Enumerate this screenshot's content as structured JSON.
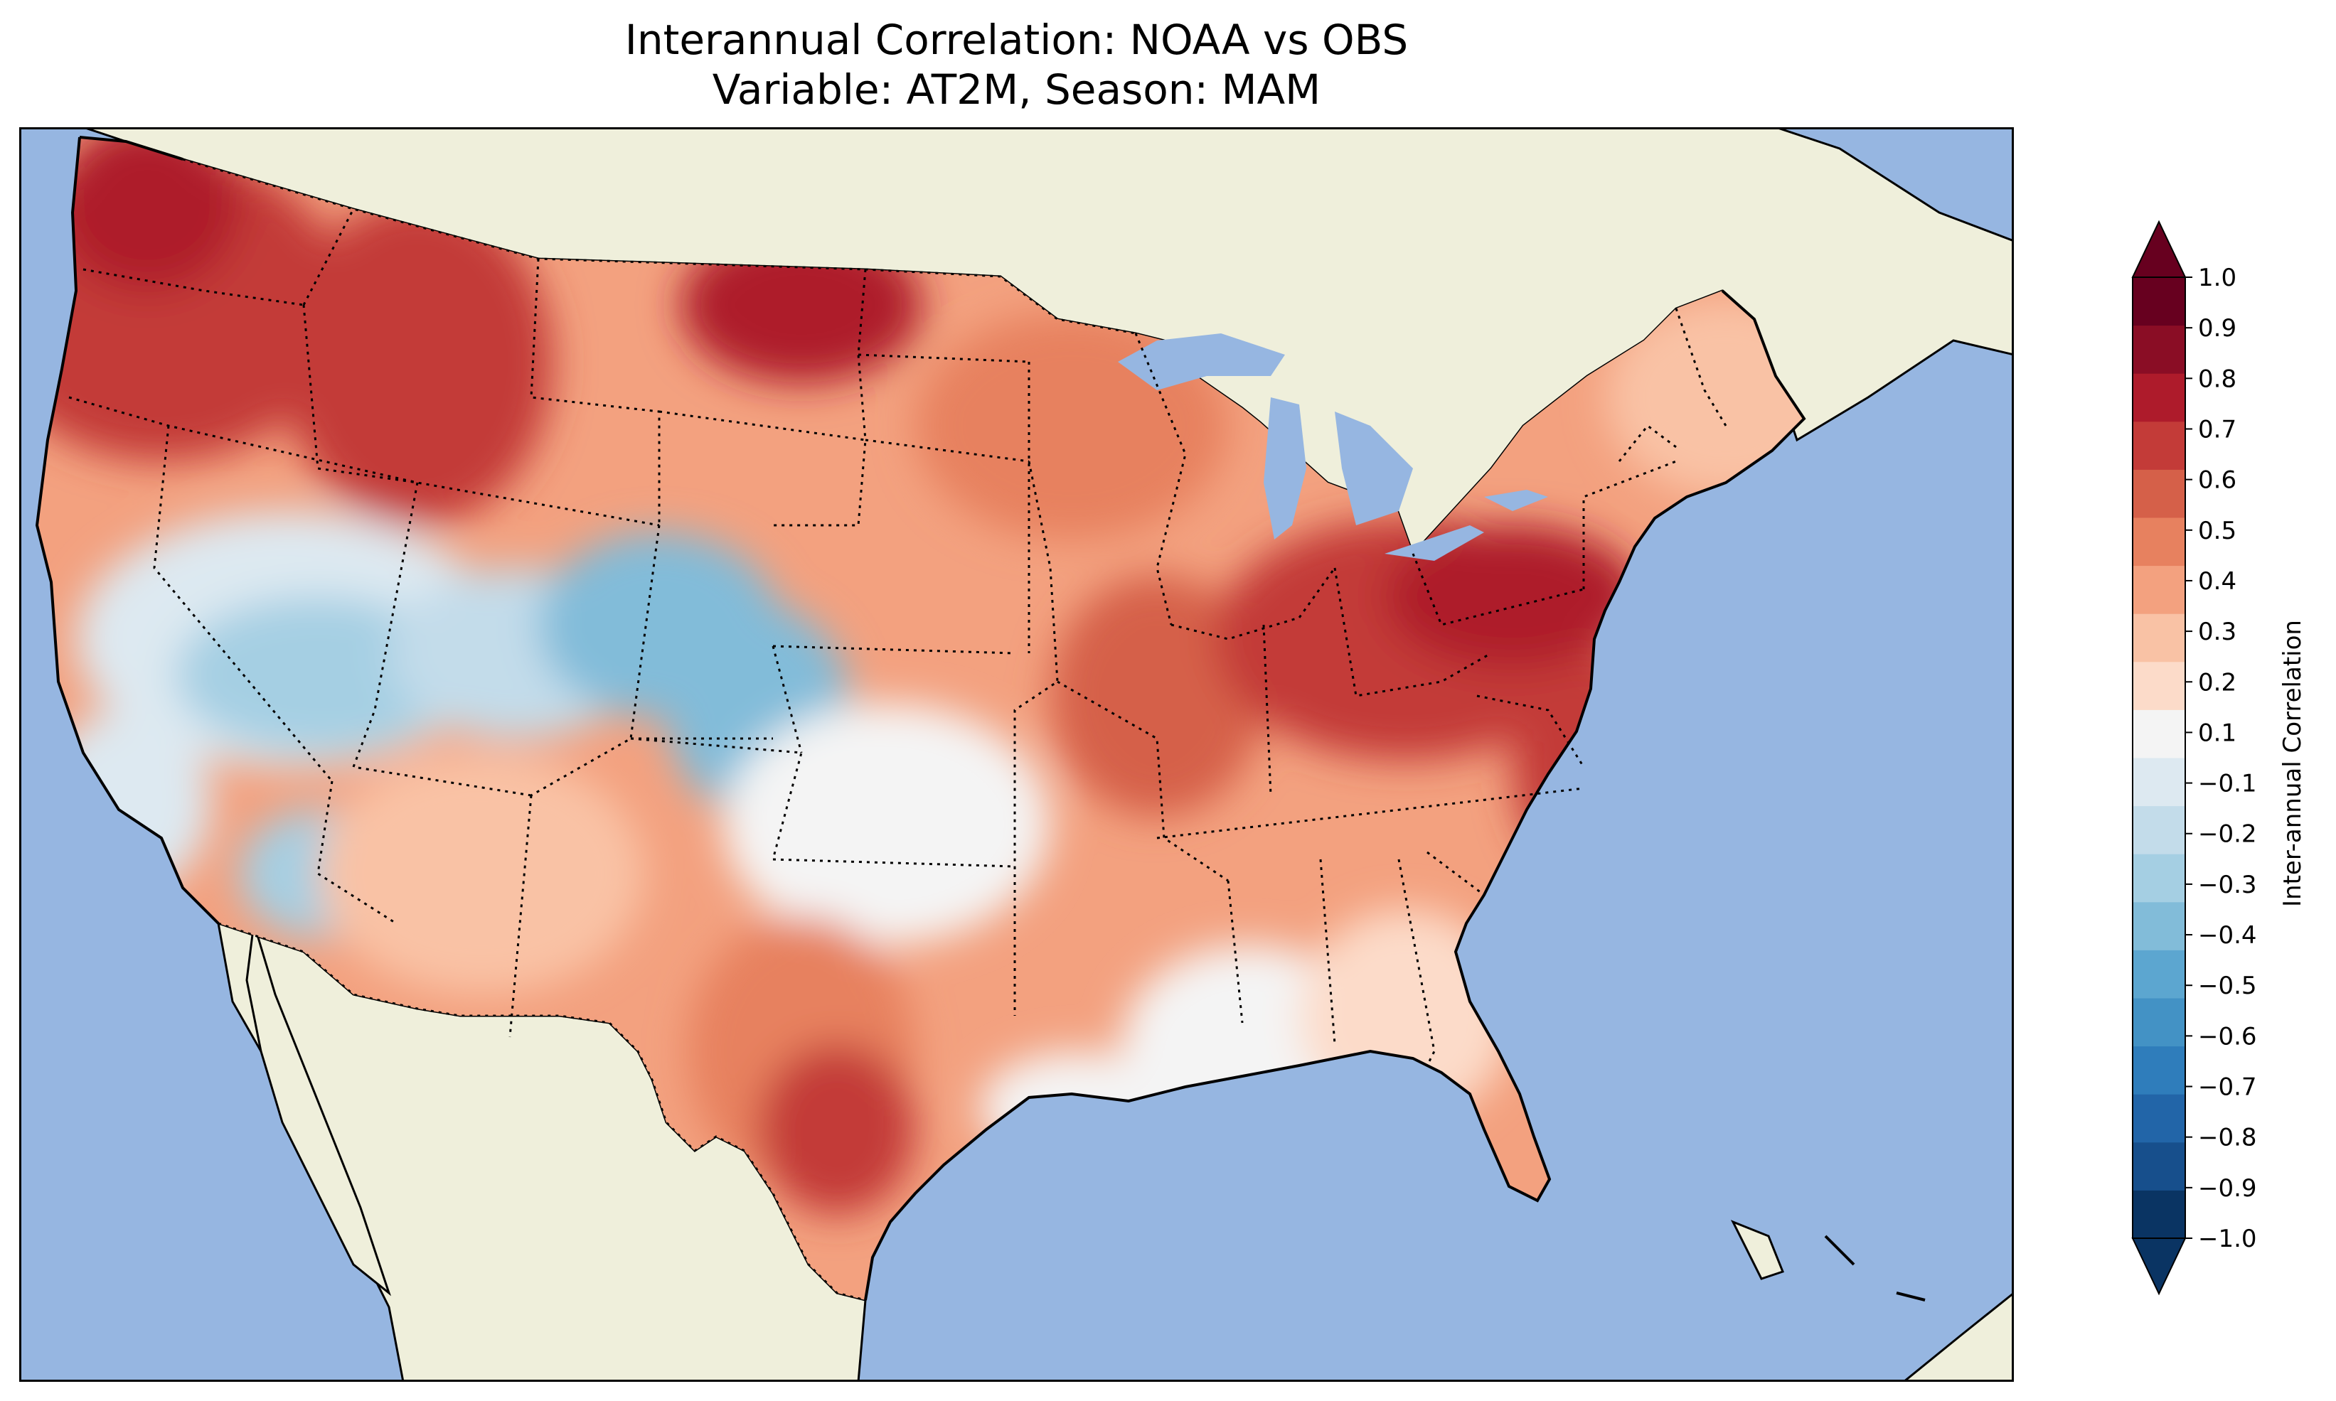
{
  "figure": {
    "title_line1": "Interannual Correlation: NOAA vs OBS",
    "title_line2": "Variable: AT2M, Season: MAM"
  },
  "map": {
    "projection": "lambert-conformal-style",
    "extent": "contiguous-united-states",
    "ocean_color": "#96b6e1",
    "land_color": "#efefdb",
    "coastline_color": "#000000",
    "borders": "dotted-state-and-country-lines",
    "field_regions": [
      {
        "region": "pacific-northwest",
        "value": 0.8
      },
      {
        "region": "northern-rockies",
        "value": 0.7
      },
      {
        "region": "north-dakota",
        "value": 0.8
      },
      {
        "region": "upper-midwest",
        "value": 0.5
      },
      {
        "region": "central-great-basin",
        "value": -0.3
      },
      {
        "region": "colorado",
        "value": -0.5
      },
      {
        "region": "southwest",
        "value": 0.3
      },
      {
        "region": "southern-plains",
        "value": 0.1
      },
      {
        "region": "texas",
        "value": 0.4
      },
      {
        "region": "central-texas",
        "value": 0.7
      },
      {
        "region": "ohio-valley",
        "value": 0.7
      },
      {
        "region": "mid-atlantic",
        "value": 0.8
      },
      {
        "region": "southeast",
        "value": 0.2
      },
      {
        "region": "florida",
        "value": 0.3
      },
      {
        "region": "northeast",
        "value": 0.4
      }
    ]
  },
  "colorbar": {
    "label": "Inter-annual Correlation",
    "min": -1.0,
    "max": 1.0,
    "extend": "both",
    "tick_labels": [
      "−1.0",
      "−0.9",
      "−0.8",
      "−0.7",
      "−0.6",
      "−0.5",
      "−0.4",
      "−0.3",
      "−0.2",
      "−0.1",
      "0.1",
      "0.2",
      "0.3",
      "0.4",
      "0.5",
      "0.6",
      "0.7",
      "0.8",
      "0.9",
      "1.0"
    ],
    "tick_values": [
      -1.0,
      -0.9,
      -0.8,
      -0.7,
      -0.6,
      -0.5,
      -0.4,
      -0.3,
      -0.2,
      -0.1,
      0.1,
      0.2,
      0.3,
      0.4,
      0.5,
      0.6,
      0.7,
      0.8,
      0.9,
      1.0
    ],
    "colors": [
      "#0a3463",
      "#174f8c",
      "#2265a8",
      "#2f7dbb",
      "#4392c5",
      "#5ca6d0",
      "#82bcd9",
      "#a5cfe3",
      "#c3dcea",
      "#dde9f1",
      "#f4f4f4",
      "#fcdbc9",
      "#f9c2a5",
      "#f3a17f",
      "#e7815f",
      "#d56049",
      "#c33b38",
      "#ae1b2b",
      "#8a0d25",
      "#67001f"
    ]
  }
}
